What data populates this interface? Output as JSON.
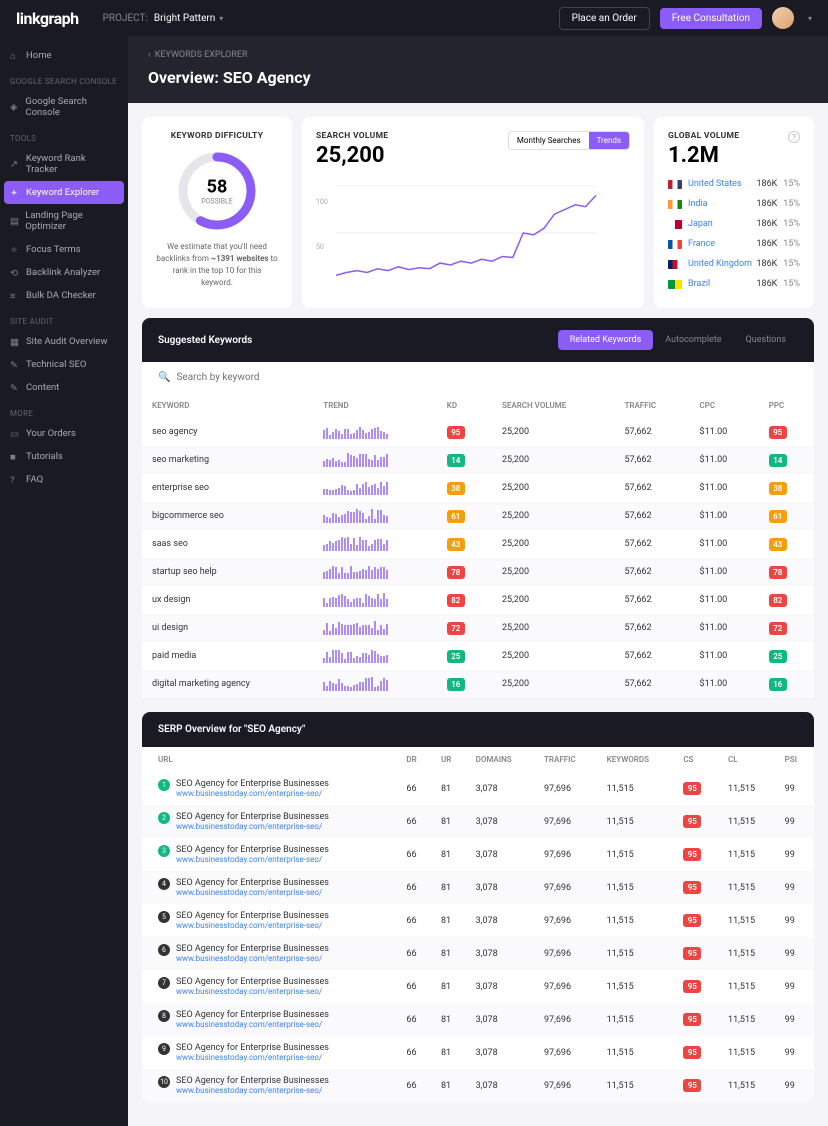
{
  "topbar": {
    "logo": "linkgraph",
    "project_label": "PROJECT:",
    "project_name": "Bright Pattern",
    "place_order": "Place an Order",
    "free_consult": "Free Consultation"
  },
  "sidebar": {
    "home": "Home",
    "sections": [
      {
        "label": "GOOGLE SEARCH CONSOLE",
        "items": [
          {
            "icon": "gsc",
            "label": "Google Search Console"
          }
        ]
      },
      {
        "label": "TOOLS",
        "items": [
          {
            "icon": "rank",
            "label": "Keyword Rank Tracker"
          },
          {
            "icon": "explorer",
            "label": "Keyword Explorer",
            "active": true
          },
          {
            "icon": "landing",
            "label": "Landing Page Optimizer"
          },
          {
            "icon": "focus",
            "label": "Focus Terms"
          },
          {
            "icon": "backlink",
            "label": "Backlink Analyzer"
          },
          {
            "icon": "bulk",
            "label": "Bulk DA Checker"
          }
        ]
      },
      {
        "label": "SITE AUDIT",
        "items": [
          {
            "icon": "audit",
            "label": "Site Audit Overview"
          },
          {
            "icon": "tech",
            "label": "Technical SEO"
          },
          {
            "icon": "content",
            "label": "Content"
          }
        ]
      },
      {
        "label": "MORE",
        "items": [
          {
            "icon": "orders",
            "label": "Your Orders"
          },
          {
            "icon": "tutorials",
            "label": "Tutorials"
          },
          {
            "icon": "faq",
            "label": "FAQ"
          }
        ]
      }
    ]
  },
  "breadcrumb": {
    "back": "‹",
    "label": "KEYWORDS EXPLORER"
  },
  "page_title": "Overview: SEO Agency",
  "difficulty": {
    "title": "KEYWORD DIFFICULTY",
    "value": "58",
    "sub": "POSSIBLE",
    "pct": 58,
    "estimate_prefix": "We estimate that you'll need backlinks from ",
    "estimate_bold": "~1391 websites",
    "estimate_suffix": " to rank in the top 10 for this keyword.",
    "ring_color": "#8b5cf6",
    "ring_bg": "#e5e5ea"
  },
  "volume": {
    "title": "SEARCH VOLUME",
    "value": "25,200",
    "tabs": [
      "Monthly Searches",
      "Trends"
    ],
    "active_tab": 1,
    "ylabels": [
      "100",
      "50"
    ],
    "line_color": "#8b5cf6",
    "points": [
      5,
      8,
      10,
      8,
      12,
      10,
      14,
      11,
      13,
      12,
      18,
      16,
      20,
      18,
      22,
      20,
      25,
      24,
      50,
      48,
      55,
      70,
      75,
      80,
      78,
      90
    ]
  },
  "global": {
    "title": "GLOBAL VOLUME",
    "value": "1.2M",
    "countries": [
      {
        "flag": "#b22234,#ffffff,#3c3b6e",
        "name": "United States",
        "val": "186K",
        "pct": "15%"
      },
      {
        "flag": "#ff9933,#ffffff,#138808",
        "name": "India",
        "val": "186K",
        "pct": "15%"
      },
      {
        "flag": "#ffffff,#bc002d",
        "name": "Japan",
        "val": "186K",
        "pct": "15%"
      },
      {
        "flag": "#0055a4,#ffffff,#ef4135",
        "name": "France",
        "val": "186K",
        "pct": "15%"
      },
      {
        "flag": "#012169,#c8102e,#ffffff",
        "name": "United Kingdom",
        "val": "186K",
        "pct": "15%"
      },
      {
        "flag": "#009739,#fedd00",
        "name": "Brazil",
        "val": "186K",
        "pct": "15%"
      }
    ]
  },
  "suggested": {
    "title": "Suggested Keywords",
    "tabs": [
      "Related Keywords",
      "Autocomplete",
      "Questions"
    ],
    "active_tab": 0,
    "search_placeholder": "Search by keyword",
    "columns": [
      "KEYWORD",
      "TREND",
      "KD",
      "SEARCH VOLUME",
      "TRAFFIC",
      "CPC",
      "PPC"
    ],
    "badge_colors": {
      "95": "#ef4444",
      "14": "#10b981",
      "38": "#f59e0b",
      "61": "#f59e0b",
      "43": "#f59e0b",
      "78": "#ef4444",
      "82": "#ef4444",
      "72": "#ef4444",
      "25": "#10b981",
      "16": "#10b981"
    },
    "rows": [
      {
        "kw": "seo agency",
        "kd": "95",
        "sv": "25,200",
        "tr": "57,662",
        "cpc": "$11.00",
        "ppc": "95"
      },
      {
        "kw": "seo marketing",
        "kd": "14",
        "sv": "25,200",
        "tr": "57,662",
        "cpc": "$11.00",
        "ppc": "14"
      },
      {
        "kw": "enterprise seo",
        "kd": "38",
        "sv": "25,200",
        "tr": "57,662",
        "cpc": "$11.00",
        "ppc": "38"
      },
      {
        "kw": "bigcommerce seo",
        "kd": "61",
        "sv": "25,200",
        "tr": "57,662",
        "cpc": "$11.00",
        "ppc": "61"
      },
      {
        "kw": "saas seo",
        "kd": "43",
        "sv": "25,200",
        "tr": "57,662",
        "cpc": "$11.00",
        "ppc": "43"
      },
      {
        "kw": "startup seo help",
        "kd": "78",
        "sv": "25,200",
        "tr": "57,662",
        "cpc": "$11.00",
        "ppc": "78"
      },
      {
        "kw": "ux design",
        "kd": "82",
        "sv": "25,200",
        "tr": "57,662",
        "cpc": "$11.00",
        "ppc": "82"
      },
      {
        "kw": "ui design",
        "kd": "72",
        "sv": "25,200",
        "tr": "57,662",
        "cpc": "$11.00",
        "ppc": "72"
      },
      {
        "kw": "paid media",
        "kd": "25",
        "sv": "25,200",
        "tr": "57,662",
        "cpc": "$11.00",
        "ppc": "25"
      },
      {
        "kw": "digital marketing agency",
        "kd": "16",
        "sv": "25,200",
        "tr": "57,662",
        "cpc": "$11.00",
        "ppc": "16"
      }
    ]
  },
  "serp": {
    "title": "SERP Overview for \"SEO Agency\"",
    "columns": [
      "URL",
      "DR",
      "UR",
      "DOMAINS",
      "TRAFFIC",
      "KEYWORDS",
      "CS",
      "CL",
      "PSI"
    ],
    "cs_color": "#ef4444",
    "rows": [
      {
        "rank": 1,
        "green": true,
        "title": "SEO Agency for Enterprise Businesses",
        "url": "www.businesstoday.com/enterprise-seo/",
        "dr": "66",
        "ur": "81",
        "dom": "3,078",
        "tr": "97,696",
        "kw": "11,515",
        "cs": "95",
        "cl": "11,515",
        "psi": "99"
      },
      {
        "rank": 2,
        "green": true,
        "title": "SEO Agency for Enterprise Businesses",
        "url": "www.businesstoday.com/enterprise-seo/",
        "dr": "66",
        "ur": "81",
        "dom": "3,078",
        "tr": "97,696",
        "kw": "11,515",
        "cs": "95",
        "cl": "11,515",
        "psi": "99"
      },
      {
        "rank": 3,
        "green": true,
        "title": "SEO Agency for Enterprise Businesses",
        "url": "www.businesstoday.com/enterprise-seo/",
        "dr": "66",
        "ur": "81",
        "dom": "3,078",
        "tr": "97,696",
        "kw": "11,515",
        "cs": "95",
        "cl": "11,515",
        "psi": "99"
      },
      {
        "rank": 4,
        "green": false,
        "title": "SEO Agency for Enterprise Businesses",
        "url": "www.businesstoday.com/enterprise-seo/",
        "dr": "66",
        "ur": "81",
        "dom": "3,078",
        "tr": "97,696",
        "kw": "11,515",
        "cs": "95",
        "cl": "11,515",
        "psi": "99"
      },
      {
        "rank": 5,
        "green": false,
        "title": "SEO Agency for Enterprise Businesses",
        "url": "www.businesstoday.com/enterprise-seo/",
        "dr": "66",
        "ur": "81",
        "dom": "3,078",
        "tr": "97,696",
        "kw": "11,515",
        "cs": "95",
        "cl": "11,515",
        "psi": "99"
      },
      {
        "rank": 6,
        "green": false,
        "title": "SEO Agency for Enterprise Businesses",
        "url": "www.businesstoday.com/enterprise-seo/",
        "dr": "66",
        "ur": "81",
        "dom": "3,078",
        "tr": "97,696",
        "kw": "11,515",
        "cs": "95",
        "cl": "11,515",
        "psi": "99"
      },
      {
        "rank": 7,
        "green": false,
        "title": "SEO Agency for Enterprise Businesses",
        "url": "www.businesstoday.com/enterprise-seo/",
        "dr": "66",
        "ur": "81",
        "dom": "3,078",
        "tr": "97,696",
        "kw": "11,515",
        "cs": "95",
        "cl": "11,515",
        "psi": "99"
      },
      {
        "rank": 8,
        "green": false,
        "title": "SEO Agency for Enterprise Businesses",
        "url": "www.businesstoday.com/enterprise-seo/",
        "dr": "66",
        "ur": "81",
        "dom": "3,078",
        "tr": "97,696",
        "kw": "11,515",
        "cs": "95",
        "cl": "11,515",
        "psi": "99"
      },
      {
        "rank": 9,
        "green": false,
        "title": "SEO Agency for Enterprise Businesses",
        "url": "www.businesstoday.com/enterprise-seo/",
        "dr": "66",
        "ur": "81",
        "dom": "3,078",
        "tr": "97,696",
        "kw": "11,515",
        "cs": "95",
        "cl": "11,515",
        "psi": "99"
      },
      {
        "rank": 10,
        "green": false,
        "title": "SEO Agency for Enterprise Businesses",
        "url": "www.businesstoday.com/enterprise-seo/",
        "dr": "66",
        "ur": "81",
        "dom": "3,078",
        "tr": "97,696",
        "kw": "11,515",
        "cs": "95",
        "cl": "11,515",
        "psi": "99"
      }
    ]
  }
}
